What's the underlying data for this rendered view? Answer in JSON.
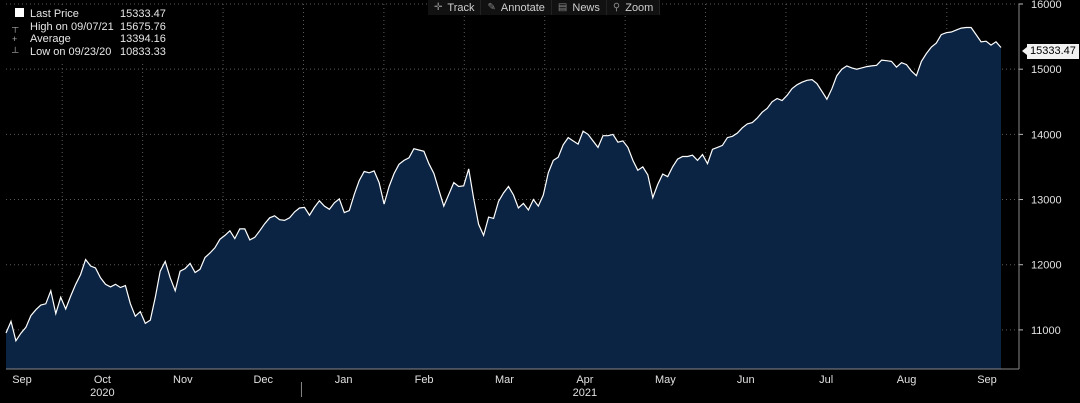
{
  "legend": {
    "rows": [
      {
        "label": "Last Price",
        "value": "15333.47",
        "icon": "square-swatch-icon"
      },
      {
        "label": "High on 09/07/21",
        "value": "15675.76",
        "icon": "high-marker-icon"
      },
      {
        "label": "Average",
        "value": "13394.16",
        "icon": "average-marker-icon"
      },
      {
        "label": "Low on 09/23/20",
        "value": "10833.33",
        "icon": "low-marker-icon"
      }
    ]
  },
  "toolbar": {
    "track": "Track",
    "annotate": "Annotate",
    "news": "News",
    "zoom": "Zoom"
  },
  "last_tag": "15333.47",
  "colors": {
    "area_fill": "#0b2443",
    "line": "#ffffff",
    "grid": "#5a5a5a",
    "background": "#000000"
  },
  "chart_data": {
    "type": "area",
    "title": "",
    "xlabel": "",
    "ylabel": "",
    "ylim": [
      10400,
      16000
    ],
    "yticks": [
      11000,
      12000,
      13000,
      14000,
      15000,
      16000
    ],
    "grid": true,
    "y_axis_side": "right",
    "month_labels": [
      "Sep",
      "Oct",
      "Nov",
      "Dec",
      "Jan",
      "Feb",
      "Mar",
      "Apr",
      "May",
      "Jun",
      "Jul",
      "Aug",
      "Sep"
    ],
    "year_labels": [
      {
        "year": "2020",
        "month_index": 1
      },
      {
        "year": "2021",
        "month_index": 7
      }
    ],
    "series": [
      {
        "values": [
          10952,
          11131,
          10833,
          10950,
          11040,
          11220,
          11310,
          11380,
          11400,
          11600,
          11250,
          11500,
          11320,
          11520,
          11700,
          11850,
          12080,
          11980,
          11950,
          11800,
          11700,
          11660,
          11700,
          11650,
          11680,
          11400,
          11210,
          11280,
          11100,
          11150,
          11500,
          11900,
          12050,
          11800,
          11600,
          11900,
          11940,
          12020,
          11880,
          11930,
          12110,
          12180,
          12260,
          12390,
          12450,
          12520,
          12400,
          12550,
          12550,
          12380,
          12420,
          12520,
          12630,
          12720,
          12750,
          12690,
          12680,
          12720,
          12810,
          12870,
          12880,
          12760,
          12880,
          12980,
          12900,
          12850,
          12950,
          13010,
          12800,
          12830,
          13080,
          13290,
          13430,
          13410,
          13440,
          13260,
          12930,
          13200,
          13400,
          13540,
          13600,
          13640,
          13780,
          13760,
          13740,
          13550,
          13400,
          13150,
          12900,
          13080,
          13260,
          13200,
          13210,
          13470,
          13020,
          12620,
          12450,
          12730,
          12710,
          12970,
          13100,
          13200,
          13070,
          12870,
          12940,
          12840,
          13000,
          12900,
          13070,
          13410,
          13600,
          13650,
          13840,
          13950,
          13900,
          13850,
          14050,
          14000,
          13900,
          13800,
          13980,
          13980,
          14000,
          13880,
          13900,
          13800,
          13600,
          13450,
          13500,
          13380,
          13030,
          13230,
          13390,
          13350,
          13500,
          13620,
          13660,
          13660,
          13680,
          13600,
          13690,
          13550,
          13770,
          13800,
          13830,
          13950,
          13970,
          14020,
          14100,
          14160,
          14180,
          14250,
          14340,
          14400,
          14500,
          14550,
          14520,
          14600,
          14700,
          14760,
          14800,
          14830,
          14840,
          14780,
          14660,
          14540,
          14700,
          14900,
          15000,
          15050,
          15020,
          15000,
          15020,
          15040,
          15050,
          15060,
          15140,
          15130,
          15120,
          15030,
          15100,
          15070,
          14970,
          14900,
          15120,
          15240,
          15340,
          15400,
          15530,
          15560,
          15570,
          15600,
          15630,
          15640,
          15640,
          15530,
          15420,
          15430,
          15370,
          15420,
          15333
        ]
      }
    ]
  }
}
